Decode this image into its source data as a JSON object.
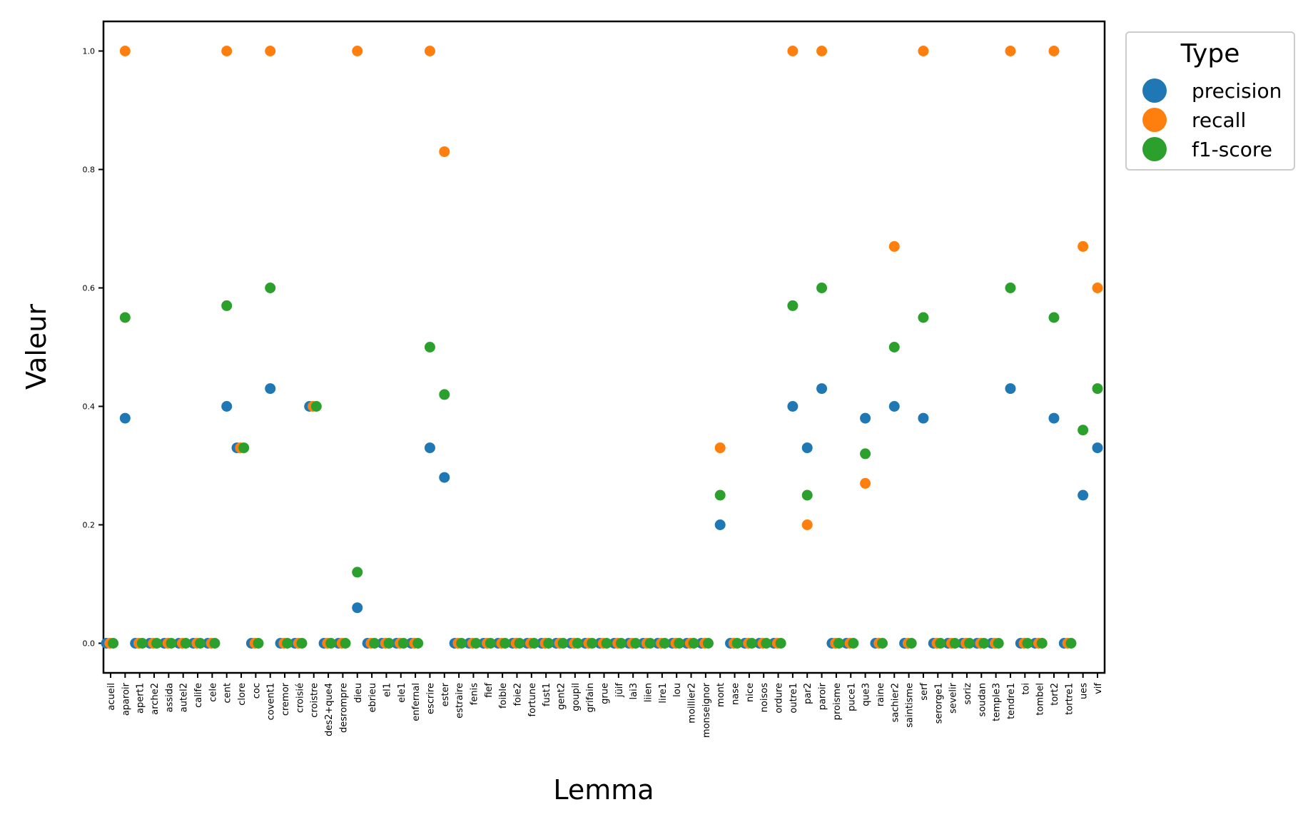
{
  "chart_data": {
    "type": "scatter",
    "title": "",
    "xlabel": "Lemma",
    "ylabel": "Valeur",
    "ylim": [
      -0.05,
      1.05
    ],
    "yticks": [
      0.0,
      0.2,
      0.4,
      0.6,
      0.8,
      1.0
    ],
    "ytick_labels": [
      "0.0",
      "0.2",
      "0.4",
      "0.6",
      "0.8",
      "1.0"
    ],
    "grid": false,
    "legend": {
      "title": "Type",
      "placement": "outside-top-right"
    },
    "categories": [
      "acueil",
      "aparoir",
      "apert1",
      "arche2",
      "assida",
      "autel2",
      "calife",
      "cele",
      "cent",
      "clore",
      "coc",
      "covent1",
      "cremor",
      "croisié",
      "croistre",
      "des2+que4",
      "desrompre",
      "dieu",
      "ebrieu",
      "el1",
      "ele1",
      "enfernal",
      "escrire",
      "ester",
      "estraire",
      "fenis",
      "fief",
      "foible",
      "foie2",
      "fortune",
      "fust1",
      "gent2",
      "goupil",
      "grifain",
      "grue",
      "jüif",
      "lai3",
      "liien",
      "lire1",
      "lou",
      "moillier2",
      "monseignor",
      "mont",
      "nase",
      "nice",
      "noisos",
      "ordure",
      "outre1",
      "par2",
      "paroir",
      "proisme",
      "puce1",
      "que3",
      "raine",
      "sachier2",
      "saintisme",
      "serf",
      "serorge1",
      "sevelir",
      "soriz",
      "soudan",
      "temple3",
      "tendre1",
      "toi",
      "tombel",
      "tort2",
      "tortre1",
      "ues",
      "vif"
    ],
    "series": [
      {
        "name": "precision",
        "color": "#1f77b4",
        "values": [
          0,
          0.38,
          0,
          0,
          0,
          0,
          0,
          0,
          0.4,
          0.33,
          0,
          0.43,
          0,
          0,
          0.4,
          0,
          0,
          0.06,
          0,
          0,
          0,
          0,
          0.33,
          0.28,
          0,
          0,
          0,
          0,
          0,
          0,
          0,
          0,
          0,
          0,
          0,
          0,
          0,
          0,
          0,
          0,
          0,
          0,
          0.2,
          0,
          0,
          0,
          0,
          0.4,
          0.33,
          0.43,
          0,
          0,
          0.38,
          0,
          0.4,
          0,
          0.38,
          0,
          0,
          0,
          0,
          0,
          0.43,
          0,
          0,
          0.38,
          0,
          0.25,
          0.33
        ]
      },
      {
        "name": "recall",
        "color": "#ff7f0e",
        "values": [
          0,
          1.0,
          0,
          0,
          0,
          0,
          0,
          0,
          1.0,
          0.33,
          0,
          1.0,
          0,
          0,
          0.4,
          0,
          0,
          1.0,
          0,
          0,
          0,
          0,
          1.0,
          0.83,
          0,
          0,
          0,
          0,
          0,
          0,
          0,
          0,
          0,
          0,
          0,
          0,
          0,
          0,
          0,
          0,
          0,
          0,
          0.33,
          0,
          0,
          0,
          0,
          1.0,
          0.2,
          1.0,
          0,
          0,
          0.27,
          0,
          0.67,
          0,
          1.0,
          0,
          0,
          0,
          0,
          0,
          1.0,
          0,
          0,
          1.0,
          0,
          0.67,
          0.6
        ]
      },
      {
        "name": "f1-score",
        "color": "#2ca02c",
        "values": [
          0,
          0.55,
          0,
          0,
          0,
          0,
          0,
          0,
          0.57,
          0.33,
          0,
          0.6,
          0,
          0,
          0.4,
          0,
          0,
          0.12,
          0,
          0,
          0,
          0,
          0.5,
          0.42,
          0,
          0,
          0,
          0,
          0,
          0,
          0,
          0,
          0,
          0,
          0,
          0,
          0,
          0,
          0,
          0,
          0,
          0,
          0.25,
          0,
          0,
          0,
          0,
          0.57,
          0.25,
          0.6,
          0,
          0,
          0.32,
          0,
          0.5,
          0,
          0.55,
          0,
          0,
          0,
          0,
          0,
          0.6,
          0,
          0,
          0.55,
          0,
          0.36,
          0.43
        ]
      }
    ]
  }
}
